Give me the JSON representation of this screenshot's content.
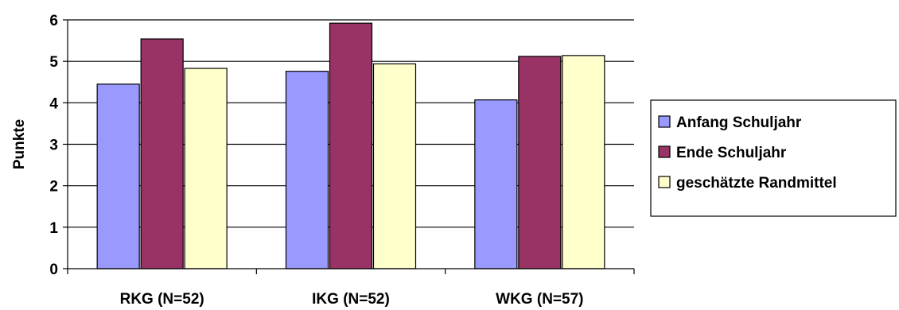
{
  "chart_data": {
    "type": "bar",
    "categories": [
      "RKG (N=52)",
      "IKG (N=52)",
      "WKG (N=57)"
    ],
    "series": [
      {
        "name": "Anfang Schuljahr",
        "values": [
          4.45,
          4.76,
          4.07
        ],
        "color": "#9999ff"
      },
      {
        "name": "Ende Schuljahr",
        "values": [
          5.54,
          5.92,
          5.12
        ],
        "color": "#993366"
      },
      {
        "name": "geschätzte Randmittel",
        "values": [
          4.83,
          4.94,
          5.14
        ],
        "color": "#ffffcc"
      }
    ],
    "xlabel": "",
    "ylabel": "Punkte",
    "ylim": [
      0,
      6
    ],
    "yticks": [
      0,
      1,
      2,
      3,
      4,
      5,
      6
    ],
    "grid": true,
    "legend_position": "right"
  }
}
